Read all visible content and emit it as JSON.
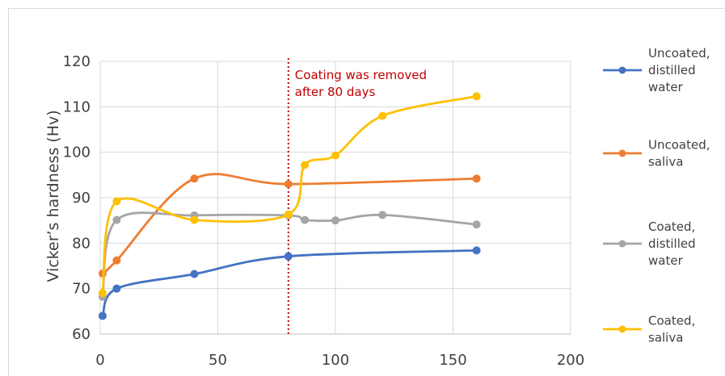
{
  "chart_data": {
    "type": "line",
    "title": "",
    "xlabel": "",
    "ylabel": "Vicker’s hardness (Hv)",
    "xlim": [
      0,
      200
    ],
    "ylim": [
      60,
      120
    ],
    "x_ticks": [
      "0",
      "50",
      "100",
      "150",
      "200"
    ],
    "y_ticks": [
      "60",
      "70",
      "80",
      "90",
      "100",
      "110",
      "120"
    ],
    "grid": "vertical and horizontal",
    "legend_position": "right",
    "annotation": {
      "text_lines": [
        "Coating was removed",
        "after 80 days"
      ],
      "x": 80,
      "line_style": "dotted",
      "color": "#c00000"
    },
    "series": [
      {
        "name_lines": [
          "Uncoated,",
          "distilled",
          "water"
        ],
        "color": "#4472c4",
        "points": [
          [
            1,
            64
          ],
          [
            7,
            70
          ],
          [
            40,
            73.2
          ],
          [
            80,
            77.1
          ],
          [
            160,
            78.4
          ]
        ]
      },
      {
        "name_lines": [
          "Uncoated,",
          "saliva"
        ],
        "color": "#ed7d31",
        "points": [
          [
            1,
            73.3
          ],
          [
            7,
            76.2
          ],
          [
            40,
            94.2
          ],
          [
            80,
            93
          ],
          [
            160,
            94.2
          ]
        ]
      },
      {
        "name_lines": [
          "Coated,",
          "distilled",
          "water"
        ],
        "color": "#a5a5a5",
        "points": [
          [
            1,
            68.2
          ],
          [
            7,
            85.1
          ],
          [
            40,
            86.1
          ],
          [
            80,
            86.1
          ],
          [
            87,
            85.1
          ],
          [
            100,
            85
          ],
          [
            120,
            86.2
          ],
          [
            160,
            84.1
          ]
        ]
      },
      {
        "name_lines": [
          "Coated,",
          "saliva"
        ],
        "color": "#ffc000",
        "points": [
          [
            1,
            69
          ],
          [
            7,
            89.2
          ],
          [
            40,
            85.1
          ],
          [
            80,
            86.3
          ],
          [
            87,
            97.2
          ],
          [
            100,
            99.3
          ],
          [
            120,
            108
          ],
          [
            160,
            112.3
          ]
        ]
      }
    ]
  }
}
